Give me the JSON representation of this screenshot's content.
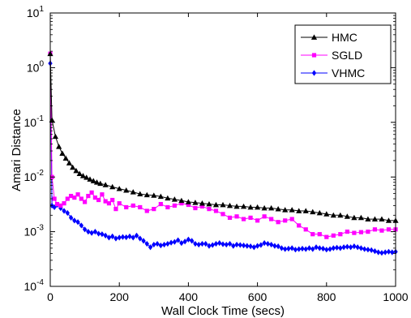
{
  "chart_data": {
    "type": "line",
    "title": "",
    "xlabel": "Wall Clock Time (secs)",
    "ylabel": "Amari Distance",
    "xlim": [
      0,
      1000
    ],
    "ylim": [
      0.0001,
      10
    ],
    "yscale": "log",
    "grid": false,
    "legend_position": "top-right",
    "x_ticks": [
      0,
      200,
      400,
      600,
      800,
      1000
    ],
    "x_tick_labels": [
      "0",
      "200",
      "400",
      "600",
      "800",
      "1000"
    ],
    "y_ticks": [
      0.0001,
      0.001,
      0.01,
      0.1,
      1,
      10
    ],
    "y_tick_base": [
      "10",
      "10",
      "10",
      "10",
      "10",
      "10"
    ],
    "y_tick_exp": [
      "-4",
      "-3",
      "-2",
      "-1",
      "0",
      "1"
    ],
    "series": [
      {
        "name": "HMC",
        "color": "#000000",
        "marker": "triangle",
        "x": [
          0,
          5,
          15,
          25,
          35,
          45,
          55,
          65,
          75,
          85,
          95,
          105,
          115,
          125,
          135,
          145,
          160,
          180,
          200,
          220,
          240,
          260,
          280,
          300,
          320,
          340,
          360,
          380,
          400,
          420,
          440,
          460,
          480,
          500,
          520,
          540,
          560,
          580,
          600,
          620,
          640,
          660,
          680,
          700,
          720,
          740,
          760,
          780,
          800,
          820,
          840,
          860,
          880,
          900,
          920,
          940,
          960,
          980,
          1000
        ],
        "y": [
          1.8,
          0.11,
          0.055,
          0.036,
          0.027,
          0.022,
          0.018,
          0.015,
          0.013,
          0.0115,
          0.0105,
          0.0098,
          0.0091,
          0.0085,
          0.008,
          0.0076,
          0.0072,
          0.0066,
          0.0061,
          0.0057,
          0.0053,
          0.0049,
          0.0047,
          0.0046,
          0.0044,
          0.0041,
          0.0039,
          0.0037,
          0.0035,
          0.0034,
          0.0033,
          0.0032,
          0.0031,
          0.0031,
          0.003,
          0.0029,
          0.0029,
          0.0028,
          0.0028,
          0.0027,
          0.0027,
          0.0026,
          0.0025,
          0.0025,
          0.0024,
          0.0024,
          0.0023,
          0.0022,
          0.0021,
          0.002,
          0.002,
          0.0019,
          0.0018,
          0.0018,
          0.0017,
          0.0017,
          0.0017,
          0.0016,
          0.0016
        ]
      },
      {
        "name": "SGLD",
        "color": "#ff00ff",
        "marker": "square",
        "x": [
          0,
          5,
          12,
          20,
          30,
          40,
          50,
          60,
          70,
          80,
          90,
          100,
          110,
          120,
          130,
          140,
          150,
          160,
          170,
          180,
          190,
          200,
          220,
          240,
          260,
          280,
          300,
          320,
          340,
          360,
          380,
          400,
          420,
          440,
          460,
          480,
          500,
          520,
          540,
          560,
          580,
          600,
          620,
          640,
          660,
          680,
          700,
          720,
          740,
          760,
          780,
          800,
          820,
          840,
          860,
          880,
          900,
          920,
          940,
          960,
          980,
          1000
        ],
        "y": [
          1.8,
          0.01,
          0.004,
          0.0032,
          0.003,
          0.0033,
          0.004,
          0.0045,
          0.0042,
          0.0048,
          0.004,
          0.0035,
          0.0045,
          0.0052,
          0.0042,
          0.0038,
          0.0048,
          0.0036,
          0.0033,
          0.0038,
          0.0026,
          0.0033,
          0.0028,
          0.003,
          0.0028,
          0.0024,
          0.0026,
          0.0032,
          0.0028,
          0.003,
          0.0033,
          0.0031,
          0.0027,
          0.0029,
          0.0026,
          0.0024,
          0.0021,
          0.0018,
          0.0019,
          0.0017,
          0.0018,
          0.0016,
          0.0019,
          0.0017,
          0.0015,
          0.0016,
          0.0017,
          0.0013,
          0.0011,
          0.0009,
          0.0009,
          0.0008,
          0.00085,
          0.0009,
          0.001,
          0.00095,
          0.00098,
          0.001,
          0.0011,
          0.00105,
          0.0011,
          0.0011
        ]
      },
      {
        "name": "VHMC",
        "color": "#0000ff",
        "marker": "diamond",
        "x": [
          0,
          5,
          12,
          20,
          30,
          40,
          50,
          60,
          70,
          80,
          90,
          100,
          110,
          120,
          130,
          140,
          150,
          160,
          170,
          180,
          190,
          200,
          210,
          220,
          230,
          240,
          250,
          260,
          270,
          280,
          290,
          300,
          310,
          320,
          330,
          340,
          350,
          360,
          370,
          380,
          390,
          400,
          410,
          420,
          430,
          440,
          450,
          460,
          470,
          480,
          490,
          500,
          510,
          520,
          530,
          540,
          550,
          560,
          570,
          580,
          590,
          600,
          610,
          620,
          630,
          640,
          650,
          660,
          670,
          680,
          690,
          700,
          710,
          720,
          730,
          740,
          750,
          760,
          770,
          780,
          790,
          800,
          810,
          820,
          830,
          840,
          850,
          860,
          870,
          880,
          890,
          900,
          910,
          920,
          930,
          940,
          950,
          960,
          970,
          980,
          990,
          1000
        ],
        "y": [
          1.2,
          0.003,
          0.0028,
          0.0031,
          0.0027,
          0.0024,
          0.0022,
          0.0018,
          0.0016,
          0.0015,
          0.0013,
          0.0011,
          0.001,
          0.00095,
          0.001,
          0.00092,
          0.0009,
          0.00085,
          0.00078,
          0.00082,
          0.00075,
          0.00078,
          0.0008,
          0.00079,
          0.00082,
          0.00078,
          0.00085,
          0.00075,
          0.00068,
          0.0006,
          0.00052,
          0.00058,
          0.0006,
          0.00056,
          0.00058,
          0.0006,
          0.00063,
          0.00065,
          0.0007,
          0.00062,
          0.00066,
          0.00072,
          0.00068,
          0.0006,
          0.00058,
          0.0006,
          0.0006,
          0.00055,
          0.00057,
          0.0006,
          0.00062,
          0.00059,
          0.00058,
          0.0006,
          0.00055,
          0.00058,
          0.00057,
          0.00056,
          0.00055,
          0.00054,
          0.00052,
          0.00055,
          0.00057,
          0.00062,
          0.0006,
          0.00058,
          0.00055,
          0.00054,
          0.0005,
          0.00048,
          0.00049,
          0.0005,
          0.00047,
          0.00048,
          0.00049,
          0.00048,
          0.0005,
          0.00048,
          0.00052,
          0.0005,
          0.00049,
          0.00047,
          0.00048,
          0.0005,
          0.00051,
          0.0005,
          0.00052,
          0.00053,
          0.00052,
          0.00054,
          0.00052,
          0.0005,
          0.00048,
          0.00047,
          0.00046,
          0.00044,
          0.00042,
          0.00041,
          0.00042,
          0.00043,
          0.00042,
          0.00043
        ]
      }
    ]
  }
}
